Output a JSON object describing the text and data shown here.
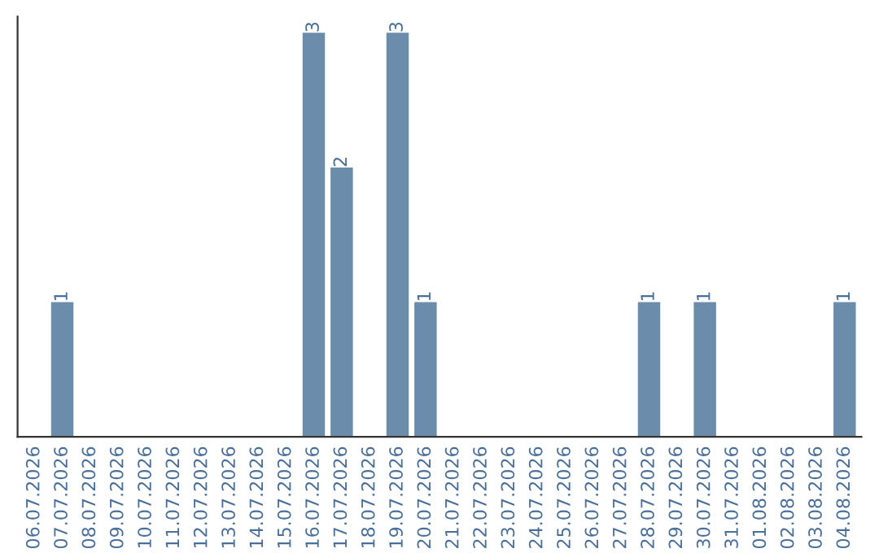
{
  "chart_data": {
    "type": "bar",
    "categories": [
      "06.07.2026",
      "07.07.2026",
      "08.07.2026",
      "09.07.2026",
      "10.07.2026",
      "11.07.2026",
      "12.07.2026",
      "13.07.2026",
      "14.07.2026",
      "15.07.2026",
      "16.07.2026",
      "17.07.2026",
      "18.07.2026",
      "19.07.2026",
      "20.07.2026",
      "21.07.2026",
      "22.07.2026",
      "23.07.2026",
      "24.07.2026",
      "25.07.2026",
      "26.07.2026",
      "27.07.2026",
      "28.07.2026",
      "29.07.2026",
      "30.07.2026",
      "31.07.2026",
      "01.08.2026",
      "02.08.2026",
      "03.08.2026",
      "04.08.2026"
    ],
    "values": [
      0,
      1,
      0,
      0,
      0,
      0,
      0,
      0,
      0,
      0,
      3,
      2,
      0,
      3,
      1,
      0,
      0,
      0,
      0,
      0,
      0,
      0,
      1,
      0,
      1,
      0,
      0,
      0,
      0,
      1
    ],
    "color": "#6b8cab",
    "value_labels": [
      null,
      "1",
      null,
      null,
      null,
      null,
      null,
      null,
      null,
      null,
      "3",
      "2",
      null,
      "3",
      "1",
      null,
      null,
      null,
      null,
      null,
      null,
      null,
      "1",
      null,
      "1",
      null,
      null,
      null,
      null,
      "1"
    ]
  }
}
